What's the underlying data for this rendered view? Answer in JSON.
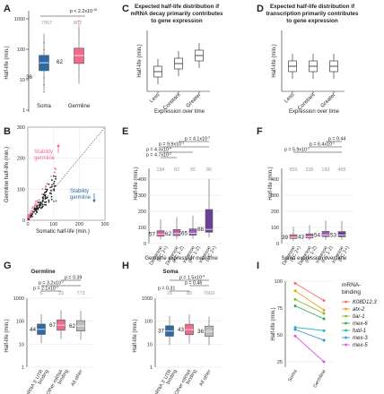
{
  "panels": {
    "A": {
      "letter": "A",
      "ylabel": "Half-life (min.)",
      "yticks": [
        "1000",
        "100",
        "10",
        "1"
      ],
      "pvalue": "p < 2.2x10",
      "pexp": "-16",
      "n": [
        "7967",
        "802"
      ],
      "groups": [
        "Soma",
        "Germline"
      ],
      "medians": [
        "36",
        "62"
      ],
      "colors": [
        "#2f6aa6",
        "#f06a8c"
      ]
    },
    "B": {
      "letter": "B",
      "xlabel": "Somatic half-life (min.)",
      "ylabel": "Germline half-life (min.)",
      "yticks": [
        "300",
        "200",
        "100",
        "0"
      ],
      "xticks": [
        "0",
        "100",
        "200",
        "300"
      ],
      "stab_germ": "Stability\ngermline",
      "stab_germ_l1": "Stability",
      "stab_germ_l2": "germline",
      "stab_germ_down_l1": "Stability",
      "stab_germ_down_l2": "germline",
      "up_color": "#f06a8c",
      "down_color": "#2f6aa6"
    },
    "C": {
      "letter": "C",
      "title_l1": "Expected half-life distribution if",
      "title_l2": "mRNA decay primarily contributes",
      "title_l3": "to gene expression",
      "ylabel": "Half-life (min.)",
      "xlabel": "Expression over time",
      "categories": [
        "Less",
        "Constant",
        "Greater"
      ]
    },
    "D": {
      "letter": "D",
      "title_l1": "Expected half-life distribution if",
      "title_l2": "transcription primarily contributes",
      "title_l3": "to gene expression",
      "ylabel": "Half-life (min.)",
      "xlabel": "Expression over time",
      "categories": [
        "Less",
        "Constant",
        "Greater"
      ]
    },
    "E": {
      "letter": "E",
      "ylabel": "Half-life (min.)",
      "xlabel": "Germline expression over time",
      "yticks": [
        "400",
        "300",
        "200",
        "100",
        "0"
      ],
      "n": [
        "184",
        "82",
        "55",
        "86"
      ],
      "medians": [
        "57",
        "62",
        "65",
        "88"
      ],
      "categories_l1": [
        "Decrease",
        "Decrease",
        "Increase",
        "Increase"
      ],
      "categories_l2": [
        "(FC 2+)",
        "(FC 1-2)",
        "(FC 1-2)",
        "(FC 2+)"
      ],
      "p": [
        {
          "txt": "p = 4.1x10",
          "exp": "-2"
        },
        {
          "txt": "p = 9.9x10",
          "exp": "-3"
        },
        {
          "txt": "p = 4.3x10",
          "exp": "-4"
        },
        {
          "txt": "p = 4.7x10",
          "exp": "-2"
        }
      ]
    },
    "F": {
      "letter": "F",
      "ylabel": "Half-life (min.)",
      "xlabel": "Soma expression over time",
      "yticks": [
        "400",
        "300",
        "200",
        "100",
        "0"
      ],
      "n": [
        "856",
        "336",
        "183",
        "465"
      ],
      "medians": [
        "39",
        "43",
        "54",
        "53"
      ],
      "categories_l1": [
        "Decrease",
        "Decrease",
        "Increase",
        "Increase"
      ],
      "categories_l2": [
        "(FC 2+)",
        "(FC 1-2)",
        "(FC 1-2)",
        "(FC 2+)"
      ],
      "p": [
        {
          "txt": "p = 0.44",
          "exp": ""
        },
        {
          "txt": "p = 6.4x10",
          "exp": "-2"
        },
        {
          "txt": "p = 5.9x10",
          "exp": "-2"
        }
      ]
    },
    "G": {
      "letter": "G",
      "title": "Germline",
      "ylabel": "Half-life (min.)",
      "yticks": [
        "1000",
        "100",
        "10",
        "1"
      ],
      "n": [
        "6",
        "23",
        "773"
      ],
      "medians": [
        "44",
        "67",
        "62"
      ],
      "categories_l1": [
        "mRNA 3′ UTR",
        "Other mRNA",
        "All other"
      ],
      "categories_l2": [
        "binding",
        "binding",
        ""
      ],
      "p": [
        {
          "txt": "p = 0.39",
          "exp": ""
        },
        {
          "txt": "p = 3.2x10",
          "exp": "-2"
        },
        {
          "txt": "p = 2.1x10",
          "exp": "-2"
        }
      ]
    },
    "H": {
      "letter": "H",
      "title": "Soma",
      "ylabel": "Half-life (min.)",
      "yticks": [
        "1000",
        "100",
        "10",
        "1"
      ],
      "n": [
        "16",
        "85",
        "7869"
      ],
      "medians": [
        "37",
        "43",
        "36"
      ],
      "categories_l1": [
        "mRNA 3′ UTR",
        "Other mRNA",
        "All other"
      ],
      "categories_l2": [
        "binding",
        "binding",
        ""
      ],
      "p": [
        {
          "txt": "p = 1.5x10",
          "exp": "-4"
        },
        {
          "txt": "p = 0.46",
          "exp": ""
        },
        {
          "txt": "p = 0.31",
          "exp": ""
        }
      ]
    },
    "I": {
      "letter": "I",
      "ylabel": "Half-life (min.)",
      "yticks": [
        "100",
        "75",
        "50",
        "25"
      ],
      "xcats": [
        "Soma",
        "Germline"
      ],
      "legend_title_l1": "mRNA-",
      "legend_title_l2": "binding"
    }
  },
  "chart_data": [
    {
      "panel": "A",
      "type": "box",
      "categories": [
        "Soma",
        "Germline"
      ],
      "medians": [
        36,
        62
      ],
      "n": [
        7967,
        802
      ],
      "ylabel": "Half-life (min.)",
      "yscale": "log",
      "ylim": [
        1,
        1000
      ]
    },
    {
      "panel": "B",
      "type": "scatter",
      "xlabel": "Somatic half-life (min.)",
      "ylabel": "Germline half-life (min.)",
      "xlim": [
        0,
        300
      ],
      "ylim": [
        0,
        300
      ],
      "reference": "y = x"
    },
    {
      "panel": "E",
      "type": "box",
      "categories": [
        "Decrease (FC 2+)",
        "Decrease (FC 1-2)",
        "Increase (FC 1-2)",
        "Increase (FC 2+)"
      ],
      "medians": [
        57,
        62,
        65,
        88
      ],
      "n": [
        184,
        82,
        55,
        86
      ],
      "ylim": [
        0,
        400
      ]
    },
    {
      "panel": "F",
      "type": "box",
      "categories": [
        "Decrease (FC 2+)",
        "Decrease (FC 1-2)",
        "Increase (FC 1-2)",
        "Increase (FC 2+)"
      ],
      "medians": [
        39,
        43,
        54,
        53
      ],
      "n": [
        856,
        336,
        183,
        465
      ],
      "ylim": [
        0,
        400
      ]
    },
    {
      "panel": "G",
      "type": "box",
      "categories": [
        "mRNA 3′ UTR binding",
        "Other mRNA binding",
        "All other"
      ],
      "medians": [
        44,
        67,
        62
      ],
      "n": [
        6,
        23,
        773
      ],
      "yscale": "log",
      "ylim": [
        1,
        1000
      ]
    },
    {
      "panel": "H",
      "type": "box",
      "categories": [
        "mRNA 3′ UTR binding",
        "Other mRNA binding",
        "All other"
      ],
      "medians": [
        37,
        43,
        36
      ],
      "n": [
        16,
        85,
        7869
      ],
      "yscale": "log",
      "ylim": [
        1,
        1000
      ]
    },
    {
      "panel": "I",
      "type": "line",
      "x": [
        "Soma",
        "Germline"
      ],
      "ylabel": "Half-life (min.)",
      "ylim": [
        20,
        100
      ],
      "series": [
        {
          "name": "K08D12.3",
          "values": [
            98,
            82
          ],
          "color": "#f26d5b"
        },
        {
          "name": "atx-2",
          "values": [
            91,
            73
          ],
          "color": "#f0a020"
        },
        {
          "name": "tiar-1",
          "values": [
            83,
            70
          ],
          "color": "#8ab82d"
        },
        {
          "name": "mex-6",
          "values": [
            77,
            65
          ],
          "color": "#33aa55"
        },
        {
          "name": "fubl-1",
          "values": [
            57,
            54
          ],
          "color": "#25b5b0"
        },
        {
          "name": "mex-3",
          "values": [
            55,
            45
          ],
          "color": "#3a8fe0"
        },
        {
          "name": "mex-5",
          "values": [
            49,
            25
          ],
          "color": "#d45ed8"
        }
      ]
    }
  ]
}
